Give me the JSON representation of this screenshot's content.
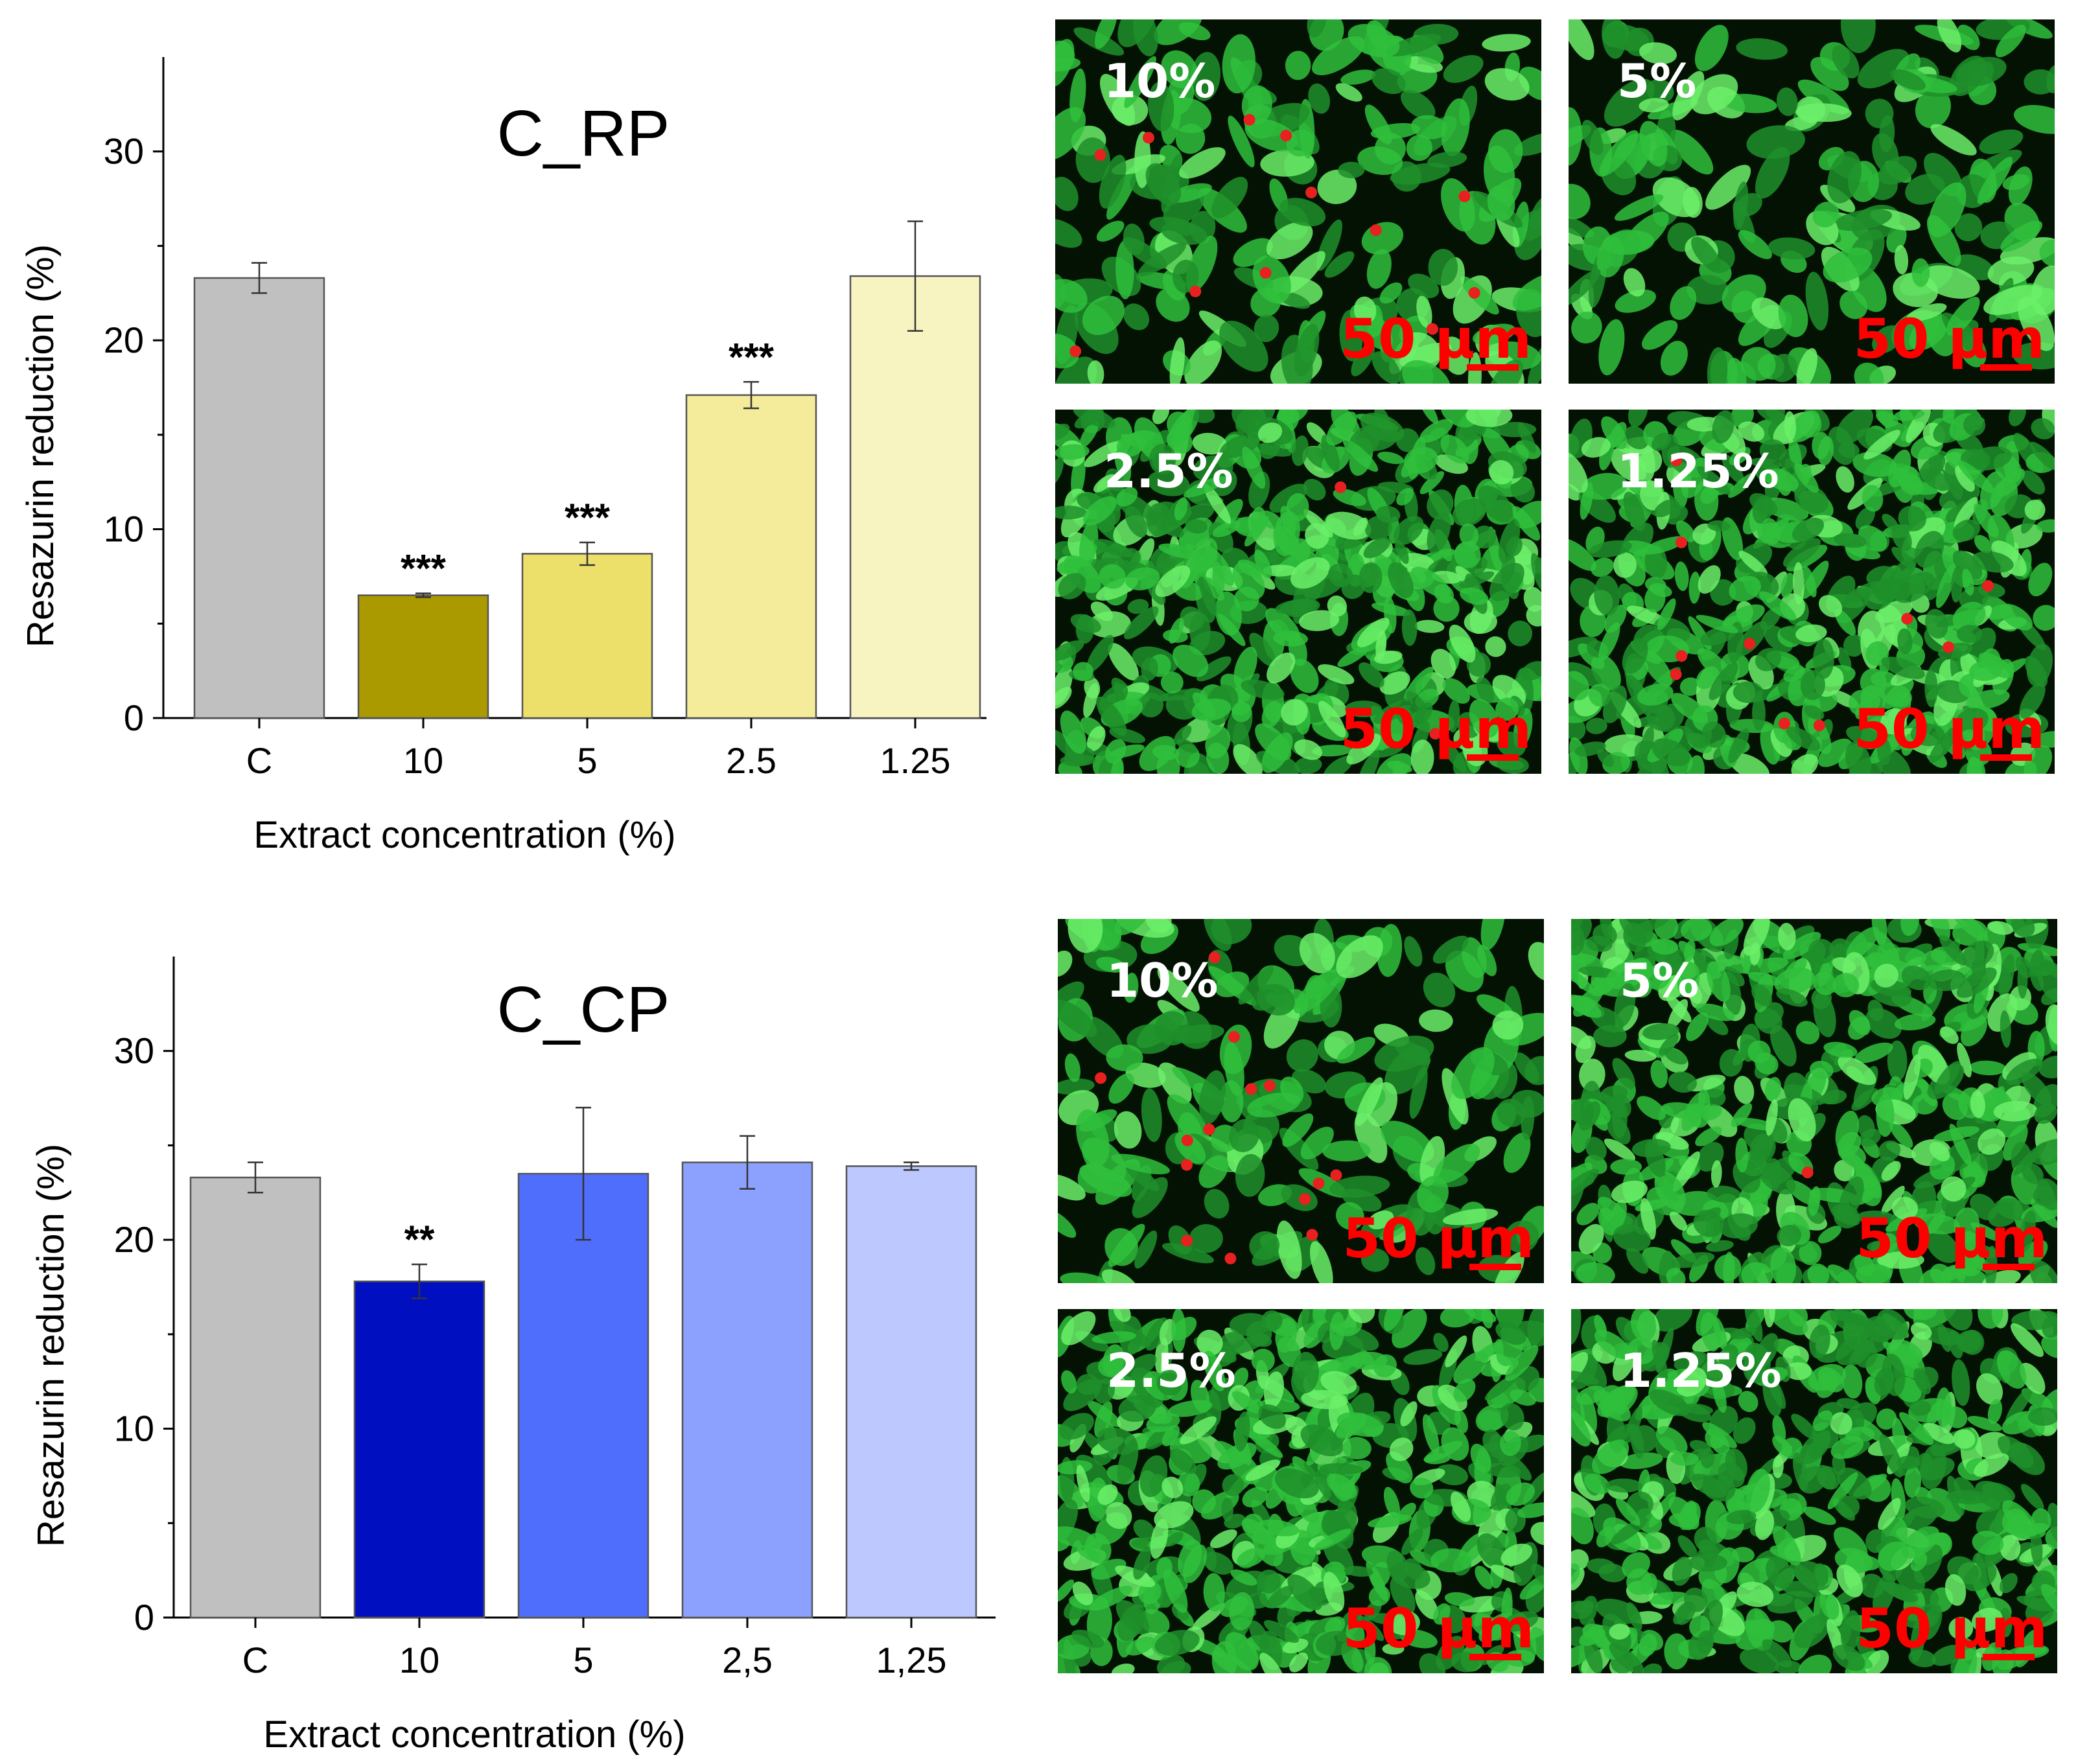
{
  "chart_data": [
    {
      "type": "bar",
      "title": "C_RP",
      "xlabel": "Extract concentration (%)",
      "ylabel": "Resazurin reduction (%)",
      "ylim": [
        0,
        35
      ],
      "yticks": [
        "0",
        "10",
        "20",
        "30"
      ],
      "categories": [
        "C",
        "10",
        "5",
        "2.5",
        "1.25"
      ],
      "values": [
        23.3,
        6.5,
        8.7,
        17.1,
        23.4
      ],
      "errors": [
        0.8,
        0.1,
        0.6,
        0.7,
        2.9
      ],
      "significance": [
        "",
        "***",
        "***",
        "***",
        ""
      ],
      "colors": [
        "#c0c0c0",
        "#aa9a00",
        "#ece06a",
        "#f4ec9a",
        "#f8f4c2"
      ],
      "grid": false,
      "legend": "none"
    },
    {
      "type": "bar",
      "title": "C_CP",
      "xlabel": "Extract concentration (%)",
      "ylabel": "Resazurin reduction (%)",
      "ylim": [
        0,
        35
      ],
      "yticks": [
        "0",
        "10",
        "20",
        "30"
      ],
      "categories": [
        "C",
        "10",
        "5",
        "2,5",
        "1,25"
      ],
      "values": [
        23.3,
        17.8,
        23.5,
        24.1,
        23.9
      ],
      "errors": [
        0.8,
        0.9,
        3.5,
        1.4,
        0.2
      ],
      "significance": [
        "",
        "**",
        "",
        "",
        ""
      ],
      "colors": [
        "#c0c0c0",
        "#0010c0",
        "#4f6efb",
        "#8ca0fd",
        "#bcc8fe"
      ],
      "grid": false,
      "legend": "none"
    }
  ],
  "micrographs": {
    "rp": [
      {
        "label": "10%",
        "scale": "50 µm",
        "dead_cells": 12
      },
      {
        "label": "5%",
        "scale": "50 µm",
        "dead_cells": 0
      },
      {
        "label": "2.5%",
        "scale": "50 µm",
        "dead_cells": 2
      },
      {
        "label": "1.25%",
        "scale": "50 µm",
        "dead_cells": 10
      }
    ],
    "cp": [
      {
        "label": "10%",
        "scale": "50 µm",
        "dead_cells": 14
      },
      {
        "label": "5%",
        "scale": "50 µm",
        "dead_cells": 1
      },
      {
        "label": "2.5%",
        "scale": "50 µm",
        "dead_cells": 0
      },
      {
        "label": "1.25%",
        "scale": "50 µm",
        "dead_cells": 0
      }
    ],
    "colors": {
      "background": "#031203",
      "cell": "#2fbf3c",
      "cell_bright": "#6cf06a",
      "dead": "#e82020",
      "label": "#ffffff",
      "scale": "#ff0000"
    }
  }
}
